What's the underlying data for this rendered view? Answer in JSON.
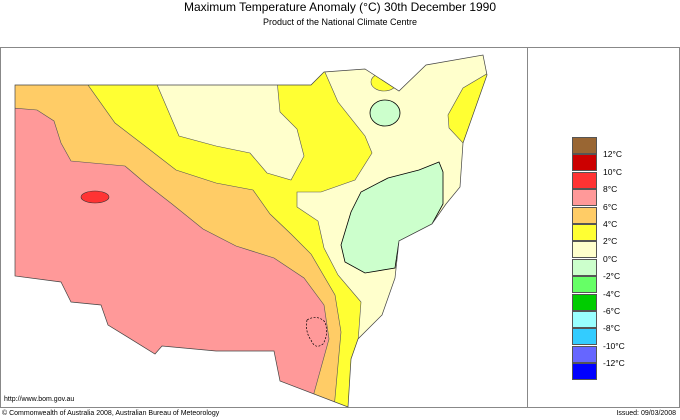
{
  "header": {
    "title": "Maximum Temperature Anomaly (°C)  30th December 1990",
    "subtitle": "Product of the National Climate Centre"
  },
  "footer": {
    "url": "http://www.bom.gov.au",
    "copyright": "© Commonwealth of Australia 2008, Australian Bureau of Meteorology",
    "issued": "Issued: 09/03/2008"
  },
  "legend": {
    "colors": [
      "#996633",
      "#cc0000",
      "#ff3333",
      "#ff9999",
      "#ffcc66",
      "#ffff33",
      "#ffffcc",
      "#ccffcc",
      "#66ff66",
      "#00cc00",
      "#99ffff",
      "#33ccff",
      "#6666ff",
      "#0000ff"
    ],
    "labels": [
      "12°C",
      "10°C",
      "8°C",
      "6°C",
      "4°C",
      "2°C",
      "0°C",
      "-2°C",
      "-4°C",
      "-6°C",
      "-8°C",
      "-10°C",
      "-12°C"
    ]
  },
  "map": {
    "region": "New South Wales",
    "anomaly_bands_shown": [
      "6°C to 8°C",
      "4°C to 6°C",
      "2°C to 4°C",
      "0°C to 2°C",
      "-2°C to 0°C",
      "8°C to 10°C"
    ]
  }
}
